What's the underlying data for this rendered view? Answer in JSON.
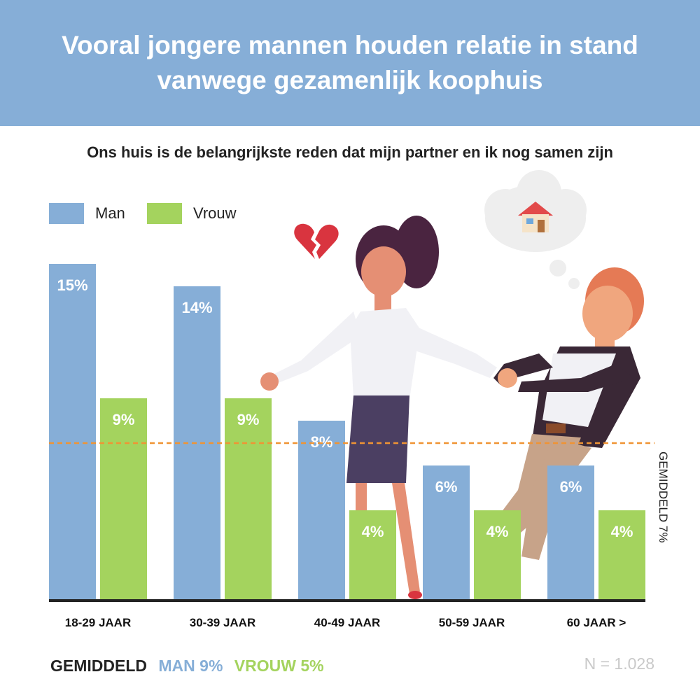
{
  "header": {
    "title": "Vooral jongere mannen houden relatie in stand\nvanwege gezamenlijk koophuis"
  },
  "chart_data": {
    "type": "bar",
    "title": "Ons huis is de belangrijkste reden dat mijn partner en ik nog samen zijn",
    "categories": [
      "18-29 JAAR",
      "30-39 JAAR",
      "40-49 JAAR",
      "50-59 JAAR",
      "60 JAAR >"
    ],
    "series": [
      {
        "name": "Man",
        "color": "#86aed7",
        "values": [
          15,
          14,
          8,
          6,
          6
        ],
        "labels": [
          "15%",
          "14%",
          "8%",
          "6%",
          "6%"
        ]
      },
      {
        "name": "Vrouw",
        "color": "#a4d35e",
        "values": [
          9,
          9,
          4,
          4,
          4
        ],
        "labels": [
          "9%",
          "9%",
          "4%",
          "4%",
          "4%"
        ]
      }
    ],
    "ylim": [
      0,
      15
    ],
    "average": {
      "value": 7,
      "label": "GEMIDDELD 7%",
      "color": "#ef9434"
    },
    "legend_position": "top-left"
  },
  "footer": {
    "average_label": "GEMIDDELD",
    "man_label": "MAN 9%",
    "vrouw_label": "VROUW 5%",
    "sample": "N = 1.028"
  },
  "illustration": {
    "icons": [
      "broken-heart-icon",
      "house-icon",
      "thought-cloud-icon",
      "woman-figure",
      "man-figure"
    ]
  }
}
